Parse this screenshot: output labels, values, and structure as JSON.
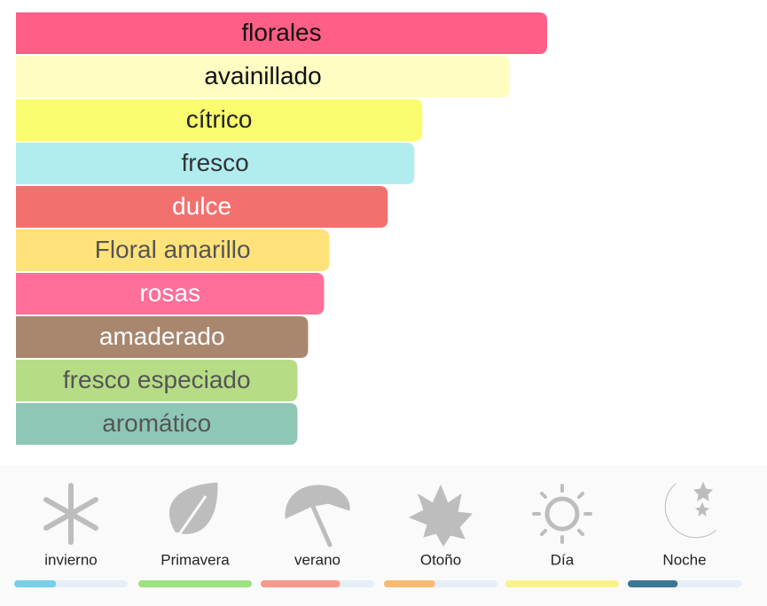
{
  "accords": [
    {
      "name": "florales",
      "color": "#ff5e86",
      "text_color": "#111111",
      "strength": 100
    },
    {
      "name": "avainillado",
      "color": "#fffdc2",
      "text_color": "#111111",
      "strength": 93
    },
    {
      "name": "cítrico",
      "color": "#f8fc6e",
      "text_color": "#222222",
      "strength": 76.5
    },
    {
      "name": "fresco",
      "color": "#b1ecef",
      "text_color": "#333333",
      "strength": 75
    },
    {
      "name": "dulce",
      "color": "#f2716e",
      "text_color": "#ffffff",
      "strength": 70
    },
    {
      "name": "Floral amarillo",
      "color": "#ffe27a",
      "text_color": "#555555",
      "strength": 59
    },
    {
      "name": "rosas",
      "color": "#ff6f9a",
      "text_color": "#ffffff",
      "strength": 58
    },
    {
      "name": "amaderado",
      "color": "#a9876f",
      "text_color": "#ffffff",
      "strength": 55
    },
    {
      "name": "fresco especiado",
      "color": "#b6dd86",
      "text_color": "#555555",
      "strength": 53
    },
    {
      "name": "aromático",
      "color": "#8ec7b6",
      "text_color": "#555555",
      "strength": 53
    }
  ],
  "seasons": [
    {
      "name": "invierno",
      "color": "#78cfe6",
      "value": 37
    },
    {
      "name": "Primavera",
      "color": "#9ee27f",
      "value": 100
    },
    {
      "name": "verano",
      "color": "#f9998a",
      "value": 70
    },
    {
      "name": "Otoño",
      "color": "#f6ba72",
      "value": 45
    },
    {
      "name": "Día",
      "color": "#faf38a",
      "value": 100
    },
    {
      "name": "Noche",
      "color": "#3d7796",
      "value": 44
    }
  ]
}
